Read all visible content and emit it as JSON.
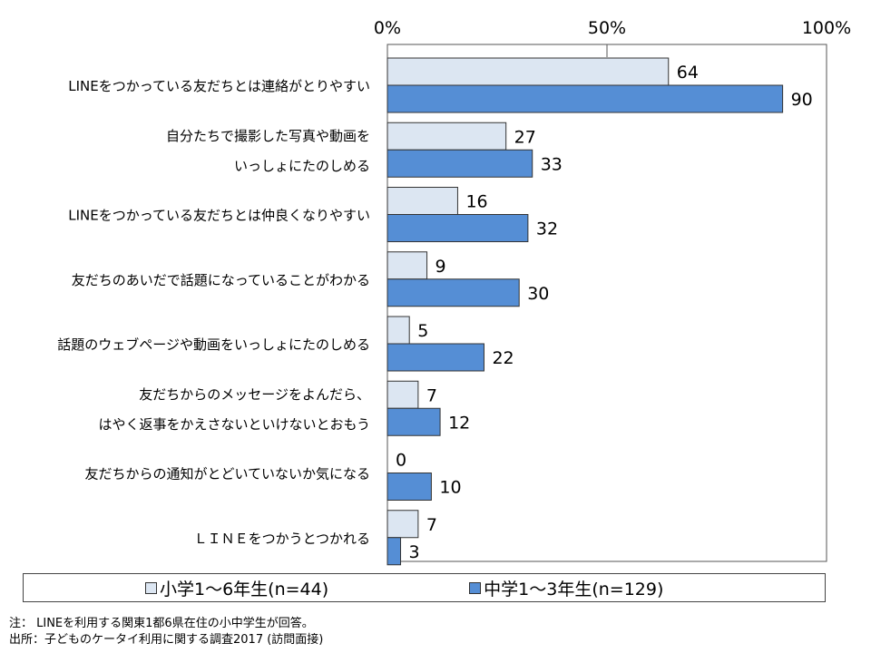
{
  "chart_data": {
    "type": "bar",
    "orientation": "horizontal",
    "categories": [
      [
        "LINEをつかっている友だちとは連絡がとりやすい"
      ],
      [
        "自分たちで撮影した写真や動画を",
        "いっしょにたのしめる"
      ],
      [
        "LINEをつかっている友だちとは仲良くなりやすい"
      ],
      [
        "友だちのあいだで話題になっていることがわかる"
      ],
      [
        "話題のウェブページや動画をいっしょにたのしめる"
      ],
      [
        "友だちからのメッセージをよんだら、",
        "はやく返事をかえさないといけないとおもう"
      ],
      [
        "友だちからの通知がとどいていないか気になる"
      ],
      [
        "ＬＩＮＥをつかうとつかれる"
      ]
    ],
    "series": [
      {
        "name": "小学1～6年生(n=44)",
        "color": "#dce6f2",
        "values": [
          64,
          27,
          16,
          9,
          5,
          7,
          0,
          7
        ]
      },
      {
        "name": "中学1～3年生(n=129)",
        "color": "#558ed5",
        "values": [
          90,
          33,
          32,
          30,
          22,
          12,
          10,
          3
        ]
      }
    ],
    "xlim": [
      0,
      100
    ],
    "x_ticks": [
      "0%",
      "50%",
      "100%"
    ],
    "x_tick_values": [
      0,
      50,
      100
    ],
    "axis_position": "top",
    "grid": false,
    "legend_position": "bottom"
  },
  "legend": {
    "s1": "小学1～6年生(n=44)",
    "s2": "中学1～3年生(n=129)"
  },
  "footer": {
    "note": "注： LINEを利用する関東1都6県在住の小中学生が回答。",
    "source": "出所：子どものケータイ利用に関する調査2017 (訪問面接)"
  }
}
